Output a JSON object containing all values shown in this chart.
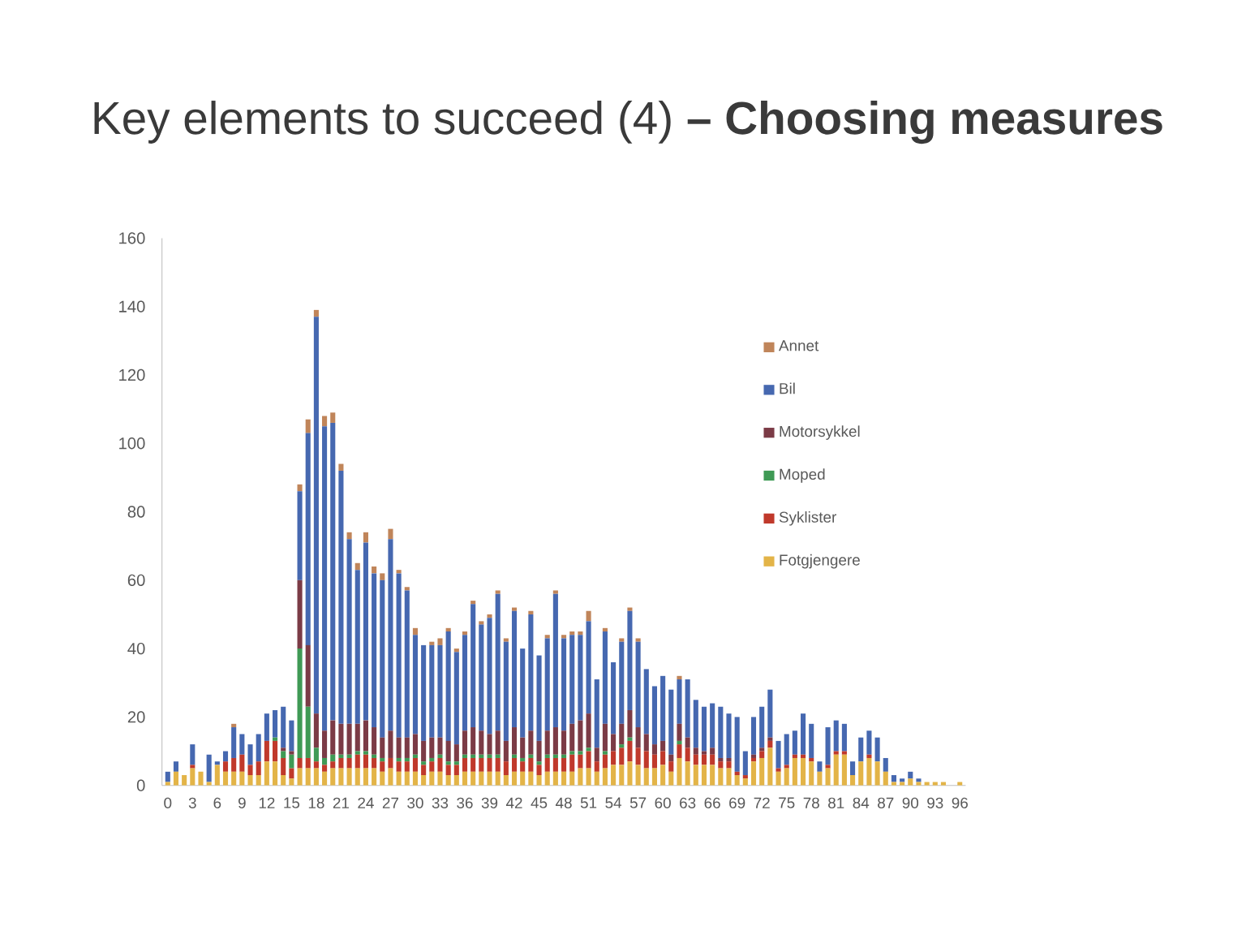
{
  "chart_data": {
    "type": "bar",
    "title": "Key elements to succeed (4) **– Choosing measures**",
    "categories": [
      "0",
      null,
      null,
      "3",
      null,
      null,
      "6",
      null,
      null,
      "9",
      null,
      null,
      "12",
      null,
      null,
      "15",
      null,
      null,
      "18",
      null,
      null,
      "21",
      null,
      null,
      "24",
      null,
      null,
      "27",
      null,
      null,
      "30",
      null,
      null,
      "33",
      null,
      null,
      "36",
      null,
      null,
      "39",
      null,
      null,
      "42",
      null,
      null,
      "45",
      null,
      null,
      "48",
      null,
      null,
      "51",
      null,
      null,
      "54",
      null,
      null,
      "57",
      null,
      null,
      "60",
      null,
      null,
      "63",
      null,
      null,
      "66",
      null,
      null,
      "69",
      null,
      null,
      "72",
      null,
      null,
      "75",
      null,
      null,
      "78",
      null,
      null,
      "81",
      null,
      null,
      "84",
      null,
      null,
      "87",
      null,
      null,
      "90",
      null,
      null,
      "93",
      null,
      null,
      "96"
    ],
    "stacked": true,
    "series": [
      {
        "name": "Fotgjengere",
        "color": "#e3b448",
        "values": [
          1,
          4,
          3,
          5,
          4,
          1,
          6,
          4,
          4,
          4,
          3,
          3,
          7,
          7,
          3,
          2,
          5,
          5,
          5,
          4,
          5,
          5,
          5,
          5,
          5,
          5,
          4,
          5,
          4,
          4,
          4,
          3,
          4,
          4,
          3,
          3,
          4,
          4,
          4,
          4,
          4,
          3,
          4,
          4,
          4,
          3,
          4,
          4,
          4,
          4,
          5,
          5,
          4,
          5,
          6,
          6,
          7,
          6,
          5,
          5,
          6,
          4,
          8,
          7,
          6,
          6,
          6,
          5,
          5,
          3,
          2,
          7,
          8,
          11,
          4,
          5,
          8,
          8,
          7,
          4,
          5,
          9,
          9,
          3,
          7,
          8,
          7,
          4,
          1,
          1,
          2,
          1,
          1,
          1,
          1,
          0,
          1
        ]
      },
      {
        "name": "Syklister",
        "color": "#c0392b",
        "values": [
          0,
          0,
          0,
          1,
          0,
          0,
          0,
          3,
          4,
          5,
          3,
          4,
          6,
          6,
          5,
          3,
          3,
          3,
          2,
          2,
          2,
          3,
          3,
          4,
          4,
          3,
          3,
          3,
          3,
          3,
          4,
          3,
          3,
          4,
          3,
          3,
          4,
          4,
          4,
          4,
          4,
          4,
          4,
          3,
          4,
          3,
          4,
          4,
          4,
          5,
          4,
          5,
          3,
          4,
          4,
          5,
          6,
          5,
          5,
          4,
          4,
          3,
          4,
          4,
          3,
          3,
          3,
          2,
          2,
          1,
          1,
          1,
          2,
          2,
          1,
          1,
          1,
          1,
          1,
          0,
          1,
          1,
          1,
          0,
          0,
          1,
          0,
          0,
          0,
          0,
          0,
          0,
          0,
          0,
          0,
          0,
          0
        ]
      },
      {
        "name": "Moped",
        "color": "#3f9a55",
        "values": [
          0,
          0,
          0,
          0,
          0,
          0,
          0,
          0,
          0,
          0,
          0,
          0,
          0,
          1,
          2,
          4,
          32,
          15,
          4,
          2,
          2,
          1,
          1,
          1,
          1,
          1,
          1,
          0,
          1,
          1,
          1,
          1,
          1,
          1,
          1,
          1,
          1,
          1,
          1,
          1,
          1,
          0,
          1,
          1,
          1,
          1,
          1,
          1,
          1,
          1,
          1,
          1,
          0,
          1,
          0,
          1,
          1,
          0,
          0,
          0,
          0,
          0,
          1,
          0,
          0,
          0,
          0,
          0,
          0,
          0,
          0,
          0,
          0,
          0,
          0,
          0,
          0,
          0,
          0,
          0,
          0,
          0,
          0,
          0,
          0,
          0,
          0,
          0,
          0,
          0,
          0,
          0,
          0,
          0,
          0,
          0,
          0
        ]
      },
      {
        "name": "Motorsykkel",
        "color": "#7b3b46",
        "values": [
          0,
          0,
          0,
          0,
          0,
          0,
          0,
          0,
          0,
          0,
          0,
          0,
          0,
          0,
          1,
          1,
          20,
          18,
          10,
          8,
          10,
          9,
          9,
          8,
          9,
          8,
          6,
          8,
          6,
          6,
          6,
          6,
          6,
          5,
          6,
          5,
          7,
          8,
          7,
          6,
          7,
          6,
          8,
          6,
          7,
          6,
          7,
          8,
          7,
          8,
          9,
          10,
          4,
          8,
          5,
          6,
          8,
          6,
          5,
          3,
          3,
          2,
          5,
          3,
          2,
          1,
          2,
          1,
          1,
          0,
          0,
          1,
          1,
          1,
          0,
          0,
          0,
          0,
          0,
          0,
          0,
          0,
          0,
          0,
          0,
          0,
          0,
          0,
          0,
          0,
          0,
          0,
          0,
          0,
          0,
          0,
          0
        ]
      },
      {
        "name": "Bil",
        "color": "#4668b0",
        "values": [
          3,
          3,
          0,
          6,
          0,
          8,
          1,
          3,
          9,
          6,
          6,
          8,
          8,
          8,
          12,
          9,
          26,
          62,
          116,
          89,
          87,
          74,
          54,
          45,
          52,
          45,
          46,
          56,
          48,
          43,
          29,
          28,
          27,
          27,
          32,
          27,
          28,
          36,
          31,
          34,
          40,
          29,
          34,
          26,
          34,
          25,
          27,
          39,
          27,
          26,
          25,
          27,
          20,
          27,
          21,
          24,
          29,
          25,
          19,
          17,
          19,
          19,
          13,
          17,
          14,
          13,
          13,
          15,
          13,
          16,
          7,
          11,
          12,
          14,
          8,
          9,
          7,
          12,
          10,
          3,
          11,
          9,
          8,
          4,
          7,
          7,
          7,
          4,
          2,
          1,
          2,
          1,
          0,
          0,
          0,
          0,
          0
        ]
      },
      {
        "name": "Annet",
        "color": "#c0855a",
        "values": [
          0,
          0,
          0,
          0,
          0,
          0,
          0,
          0,
          1,
          0,
          0,
          0,
          0,
          0,
          0,
          0,
          2,
          4,
          2,
          3,
          3,
          2,
          2,
          2,
          3,
          2,
          2,
          3,
          1,
          1,
          2,
          0,
          1,
          2,
          1,
          1,
          1,
          1,
          1,
          1,
          1,
          1,
          1,
          0,
          1,
          0,
          1,
          1,
          1,
          1,
          1,
          3,
          0,
          1,
          0,
          1,
          1,
          1,
          0,
          0,
          0,
          0,
          1,
          0,
          0,
          0,
          0,
          0,
          0,
          0,
          0,
          0,
          0,
          0,
          0,
          0,
          0,
          0,
          0,
          0,
          0,
          0,
          0,
          0,
          0,
          0,
          0,
          0,
          0,
          0,
          0,
          0,
          0,
          0,
          0,
          0,
          0
        ]
      }
    ],
    "ylim": [
      0,
      160
    ],
    "yticks": [
      0,
      20,
      40,
      60,
      80,
      100,
      120,
      140,
      160
    ],
    "legend": "top right"
  }
}
